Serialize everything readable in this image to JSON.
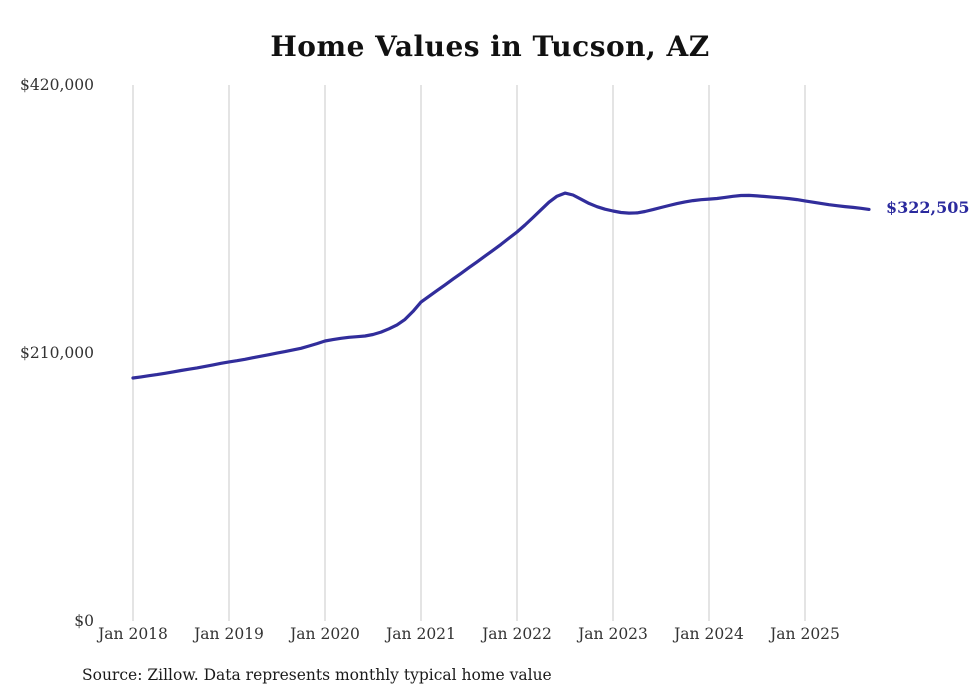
{
  "chart_data": {
    "type": "line",
    "title": "Home Values in Tucson, AZ",
    "x_start": "Jan 2018",
    "frequency": "monthly",
    "series": [
      {
        "name": "Typical home value",
        "values": [
          190400,
          191300,
          192200,
          193100,
          194100,
          195200,
          196300,
          197300,
          198300,
          199500,
          200700,
          201900,
          203000,
          204000,
          205100,
          206300,
          207500,
          208700,
          209900,
          211100,
          212400,
          213700,
          215500,
          217400,
          219400,
          220500,
          221500,
          222300,
          222800,
          223300,
          224500,
          226400,
          229000,
          232000,
          236300,
          242600,
          249900,
          254400,
          258900,
          263400,
          267900,
          272400,
          276900,
          281400,
          285900,
          290500,
          295100,
          300000,
          304800,
          310300,
          316200,
          322200,
          328200,
          332900,
          335300,
          333800,
          330500,
          327200,
          324600,
          322700,
          321300,
          320100,
          319600,
          319800,
          320900,
          322400,
          324000,
          325600,
          327100,
          328400,
          329400,
          330100,
          330600,
          331100,
          331900,
          332800,
          333400,
          333500,
          333100,
          332600,
          332100,
          331600,
          331000,
          330200,
          329200,
          328200,
          327200,
          326200,
          325400,
          324700,
          324100,
          323400,
          322505
        ]
      }
    ],
    "x_tick_labels": [
      "Jan 2018",
      "Jan 2019",
      "Jan 2020",
      "Jan 2021",
      "Jan 2022",
      "Jan 2023",
      "Jan 2024",
      "Jan 2025"
    ],
    "x_tick_month_indices": [
      0,
      12,
      24,
      36,
      48,
      60,
      72,
      84
    ],
    "y_ticks": [
      {
        "label": "$420,000",
        "value": 420000
      },
      {
        "label": "$210,000",
        "value": 210000
      },
      {
        "label": "$0",
        "value": 0
      }
    ],
    "ylim": [
      0,
      420000
    ],
    "grid": "vertical-only",
    "legend": "none",
    "end_label": "$322,505",
    "end_value": 322505,
    "line_color": "#312d9b",
    "gridline_color": "#c9c9c9",
    "source_note": "Source: Zillow. Data represents monthly typical home value"
  }
}
